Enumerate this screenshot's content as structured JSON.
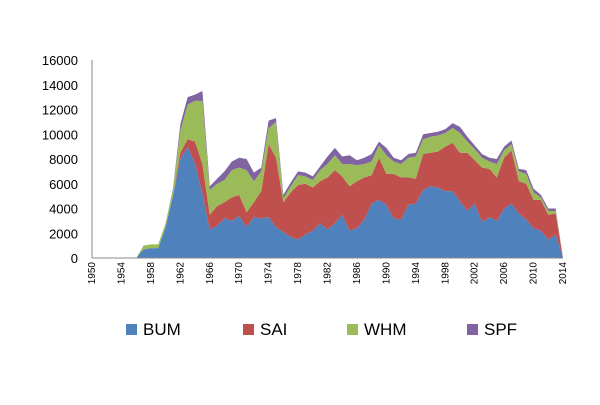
{
  "chart_data": {
    "type": "area",
    "stacked": true,
    "title": "",
    "xlabel": "",
    "ylabel": "",
    "ylim": [
      0,
      16000
    ],
    "yticks": [
      0,
      2000,
      4000,
      6000,
      8000,
      10000,
      12000,
      14000,
      16000
    ],
    "xlim": [
      1950,
      2014
    ],
    "xticks": [
      1950,
      1954,
      1958,
      1962,
      1966,
      1970,
      1974,
      1978,
      1982,
      1986,
      1990,
      1994,
      1998,
      2002,
      2006,
      2010,
      2014
    ],
    "grid": false,
    "legend_position": "bottom",
    "x": [
      1950,
      1951,
      1952,
      1953,
      1954,
      1955,
      1956,
      1957,
      1958,
      1959,
      1960,
      1961,
      1962,
      1963,
      1964,
      1965,
      1966,
      1967,
      1968,
      1969,
      1970,
      1971,
      1972,
      1973,
      1974,
      1975,
      1976,
      1977,
      1978,
      1979,
      1980,
      1981,
      1982,
      1983,
      1984,
      1985,
      1986,
      1987,
      1988,
      1989,
      1990,
      1991,
      1992,
      1993,
      1994,
      1995,
      1996,
      1997,
      1998,
      1999,
      2000,
      2001,
      2002,
      2003,
      2004,
      2005,
      2006,
      2007,
      2008,
      2009,
      2010,
      2011,
      2012,
      2013,
      2014
    ],
    "series": [
      {
        "name": "BUM",
        "color": "#4f81bd",
        "values": [
          0,
          0,
          0,
          0,
          0,
          0,
          0,
          700,
          800,
          800,
          2500,
          5000,
          8000,
          9000,
          7600,
          5200,
          2300,
          2600,
          3200,
          3000,
          3400,
          2500,
          3300,
          3200,
          3300,
          2500,
          2100,
          1700,
          1500,
          1900,
          2200,
          2800,
          2300,
          2800,
          3500,
          2200,
          2400,
          3100,
          4400,
          4700,
          4300,
          3200,
          3100,
          4300,
          4400,
          5500,
          5800,
          5700,
          5400,
          5400,
          4600,
          3800,
          4400,
          2900,
          3300,
          3000,
          4000,
          4400,
          3600,
          3100,
          2400,
          2200,
          1500,
          1900,
          0
        ],
        "fill_mode": "tozero"
      },
      {
        "name": "SAI",
        "color": "#c0504d",
        "values": [
          0,
          0,
          0,
          0,
          0,
          0,
          0,
          0,
          0,
          0,
          0,
          0,
          500,
          600,
          1800,
          2400,
          1200,
          1600,
          1300,
          1900,
          1700,
          1200,
          1200,
          2200,
          5900,
          5600,
          2400,
          3600,
          4400,
          4100,
          3500,
          3400,
          4200,
          4300,
          3100,
          3600,
          3800,
          3400,
          2300,
          3400,
          2500,
          3600,
          3400,
          2200,
          2000,
          2900,
          2700,
          2900,
          3600,
          3900,
          3900,
          4700,
          3500,
          4400,
          3900,
          3500,
          4100,
          4300,
          2600,
          2900,
          2300,
          2500,
          2000,
          1700,
          0
        ],
        "fill_mode": "stack"
      },
      {
        "name": "WHM",
        "color": "#9bbb59",
        "values": [
          0,
          0,
          0,
          0,
          0,
          0,
          0,
          300,
          300,
          300,
          300,
          500,
          1800,
          2800,
          3300,
          5100,
          2000,
          1800,
          1800,
          2200,
          2200,
          3400,
          1700,
          1600,
          1300,
          2900,
          300,
          500,
          800,
          600,
          600,
          900,
          1100,
          1200,
          1000,
          1800,
          1300,
          1100,
          1100,
          1000,
          1500,
          1000,
          1100,
          1600,
          1800,
          1200,
          1300,
          1300,
          1100,
          1200,
          1600,
          900,
          900,
          800,
          600,
          1100,
          600,
          500,
          800,
          800,
          600,
          200,
          300,
          200,
          0
        ],
        "fill_mode": "stack"
      },
      {
        "name": "SPF",
        "color": "#8064a2",
        "values": [
          0,
          0,
          0,
          0,
          0,
          0,
          0,
          0,
          0,
          0,
          0,
          100,
          500,
          600,
          500,
          800,
          300,
          400,
          700,
          700,
          800,
          900,
          700,
          300,
          600,
          300,
          300,
          300,
          300,
          300,
          300,
          300,
          600,
          600,
          600,
          700,
          400,
          500,
          600,
          300,
          600,
          300,
          300,
          300,
          300,
          400,
          300,
          300,
          300,
          400,
          500,
          400,
          300,
          300,
          300,
          400,
          300,
          300,
          200,
          300,
          300,
          200,
          200,
          200,
          0
        ],
        "fill_mode": "stack"
      }
    ]
  }
}
